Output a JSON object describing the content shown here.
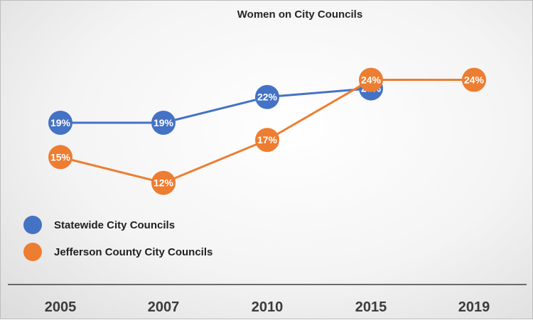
{
  "chart_data": {
    "type": "line",
    "title": "Women on City Councils",
    "xlabel": "",
    "ylabel": "",
    "categories": [
      "2005",
      "2007",
      "2010",
      "2015",
      "2019"
    ],
    "ylim": [
      0,
      30
    ],
    "grid": false,
    "legend_position": "left",
    "series": [
      {
        "name": "Statewide City Councils",
        "color": "#4472C4",
        "values": [
          19,
          19,
          22,
          23,
          null
        ],
        "labels": [
          "19%",
          "19%",
          "22%",
          "23%",
          null
        ]
      },
      {
        "name": "Jefferson County City Councils",
        "color": "#ED7D31",
        "values": [
          15,
          12,
          17,
          24,
          24
        ],
        "labels": [
          "15%",
          "12%",
          "17%",
          "24%",
          "24%"
        ]
      }
    ]
  }
}
